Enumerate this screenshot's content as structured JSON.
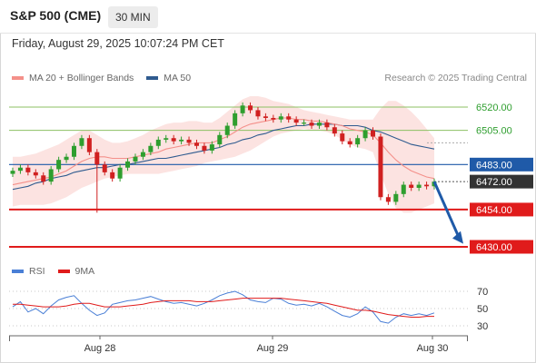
{
  "header": {
    "title": "S&P 500 (CME)",
    "timeframe": "30 MIN"
  },
  "timestamp": "Friday, August 29, 2025 10:07:24 PM CET",
  "legend_main": [
    {
      "label": "MA 20 + Bollinger Bands",
      "color": "#f4908a"
    },
    {
      "label": "MA 50",
      "color": "#2f5b8f"
    }
  ],
  "legend_rsi": [
    {
      "label": "RSI",
      "color": "#4a7fd6"
    },
    {
      "label": "9MA",
      "color": "#e01b1b"
    }
  ],
  "research": "Research © 2025 Trading Central",
  "colors": {
    "support": "#e01b1b",
    "pivot": "#1f5aa8",
    "resistance": "#8cc063",
    "up": "#2e9e2e",
    "down": "#d02020",
    "arrow": "#1f5aa8"
  },
  "chart_data": {
    "type": "line",
    "price_levels": [
      {
        "value": 6520.0,
        "label": "6520.00",
        "kind": "resistance"
      },
      {
        "value": 6505.0,
        "label": "6505.00",
        "kind": "resistance"
      },
      {
        "value": 6483.0,
        "label": "6483.00",
        "kind": "pivot"
      },
      {
        "value": 6472.0,
        "label": "6472.00",
        "kind": "last"
      },
      {
        "value": 6454.0,
        "label": "6454.00",
        "kind": "support"
      },
      {
        "value": 6430.0,
        "label": "6430.00",
        "kind": "support"
      }
    ],
    "x_ticks": [
      "Aug 28",
      "Aug 29",
      "Aug 30"
    ],
    "rsi_ticks": [
      70,
      50,
      30
    ],
    "price_series": [
      6479,
      6481,
      6478,
      6476,
      6472,
      6480,
      6486,
      6488,
      6495,
      6500,
      6491,
      6483,
      6478,
      6474,
      6481,
      6485,
      6488,
      6491,
      6495,
      6499,
      6500,
      6498,
      6499,
      6497,
      6495,
      6492,
      6496,
      6502,
      6508,
      6516,
      6521,
      6518,
      6514,
      6513,
      6512,
      6514,
      6512,
      6510,
      6510,
      6508,
      6510,
      6507,
      6503,
      6498,
      6496,
      6500,
      6505,
      6501,
      6462,
      6459,
      6464,
      6470,
      6468,
      6470,
      6469,
      6472
    ],
    "ma20": [
      6470,
      6471,
      6472,
      6473,
      6474,
      6475,
      6477,
      6479,
      6482,
      6485,
      6487,
      6488,
      6488,
      6487,
      6487,
      6487,
      6488,
      6489,
      6490,
      6491,
      6493,
      6494,
      6495,
      6496,
      6497,
      6497,
      6497,
      6499,
      6501,
      6504,
      6507,
      6509,
      6510,
      6511,
      6512,
      6513,
      6513,
      6512,
      6512,
      6511,
      6511,
      6510,
      6509,
      6508,
      6506,
      6505,
      6504,
      6502,
      6497,
      6491,
      6486,
      6482,
      6479,
      6477,
      6475,
      6474
    ],
    "ma50": [
      6467,
      6468,
      6469,
      6471,
      6472,
      6474,
      6475,
      6476,
      6478,
      6479,
      6480,
      6481,
      6481,
      6482,
      6483,
      6483,
      6484,
      6485,
      6486,
      6487,
      6487,
      6488,
      6489,
      6490,
      6491,
      6492,
      6493,
      6494,
      6496,
      6497,
      6499,
      6500,
      6502,
      6503,
      6505,
      6506,
      6507,
      6508,
      6508,
      6509,
      6509,
      6509,
      6509,
      6508,
      6508,
      6508,
      6507,
      6505,
      6504,
      6502,
      6500,
      6498,
      6496,
      6495,
      6494,
      6493
    ],
    "bollinger_upper": [
      6488,
      6488,
      6489,
      6490,
      6492,
      6494,
      6496,
      6499,
      6502,
      6505,
      6505,
      6502,
      6499,
      6497,
      6497,
      6498,
      6500,
      6502,
      6505,
      6507,
      6509,
      6510,
      6510,
      6511,
      6511,
      6510,
      6510,
      6513,
      6517,
      6521,
      6525,
      6527,
      6527,
      6526,
      6524,
      6523,
      6522,
      6520,
      6518,
      6517,
      6516,
      6515,
      6514,
      6513,
      6512,
      6512,
      6512,
      6512,
      6519,
      6524,
      6524,
      6521,
      6517,
      6512,
      6506,
      6500
    ],
    "bollinger_lower": [
      6456,
      6457,
      6457,
      6457,
      6457,
      6458,
      6460,
      6462,
      6465,
      6468,
      6470,
      6472,
      6474,
      6475,
      6476,
      6477,
      6477,
      6477,
      6477,
      6477,
      6478,
      6479,
      6480,
      6481,
      6482,
      6484,
      6485,
      6486,
      6487,
      6488,
      6490,
      6492,
      6495,
      6498,
      6501,
      6503,
      6504,
      6505,
      6506,
      6505,
      6505,
      6504,
      6502,
      6499,
      6496,
      6494,
      6493,
      6491,
      6477,
      6464,
      6455,
      6452,
      6452,
      6454,
      6456,
      6458
    ],
    "rsi": [
      52,
      58,
      46,
      50,
      44,
      53,
      60,
      63,
      65,
      56,
      48,
      42,
      45,
      55,
      57,
      59,
      60,
      62,
      64,
      61,
      58,
      56,
      57,
      55,
      53,
      56,
      60,
      65,
      68,
      70,
      66,
      60,
      58,
      57,
      62,
      61,
      56,
      54,
      55,
      53,
      56,
      52,
      47,
      42,
      40,
      44,
      52,
      46,
      35,
      33,
      40,
      44,
      42,
      44,
      42,
      45
    ],
    "rsi_ma9": [
      55,
      55,
      54,
      53,
      52,
      52,
      52,
      53,
      55,
      56,
      56,
      54,
      52,
      52,
      52,
      53,
      54,
      55,
      57,
      58,
      59,
      59,
      59,
      59,
      58,
      58,
      58,
      59,
      60,
      61,
      62,
      62,
      62,
      62,
      62,
      62,
      61,
      60,
      59,
      58,
      57,
      56,
      54,
      52,
      50,
      48,
      48,
      47,
      45,
      43,
      42,
      41,
      40,
      40,
      41,
      41
    ]
  }
}
